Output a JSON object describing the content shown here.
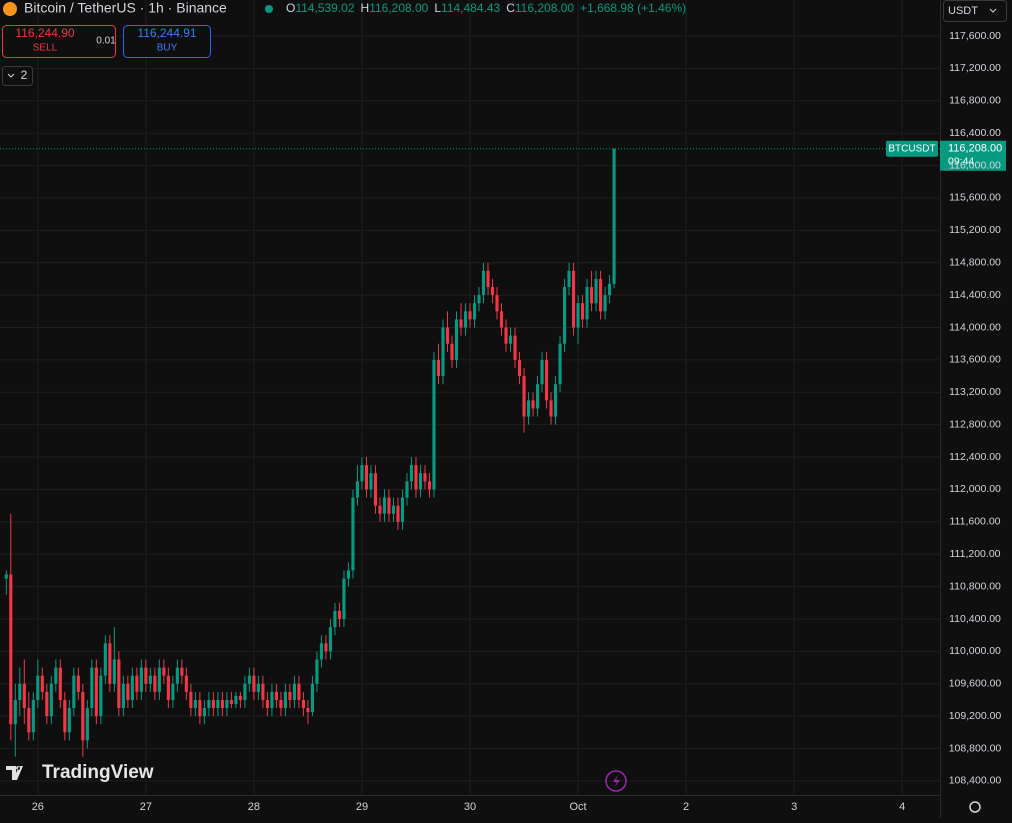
{
  "header": {
    "symbol": "Bitcoin / TetherUS · 1h · Binance",
    "ohlc": [
      {
        "key": "O",
        "value": "114,539.02"
      },
      {
        "key": "H",
        "value": "116,208.00"
      },
      {
        "key": "L",
        "value": "114,484.43"
      },
      {
        "key": "C",
        "value": "116,208.00"
      }
    ],
    "change": "+1,668.98 (+1.46%)"
  },
  "order_panel": {
    "sell_price": "116,244.90",
    "sell": "SELL",
    "spread": "0.01",
    "buy_price": "116,244.91",
    "buy": "BUY",
    "indicators": "2"
  },
  "currency": "USDT",
  "brand": "TradingView",
  "chart_data": {
    "type": "candlestick",
    "up_color": "#089981",
    "down_color": "#f23645",
    "grid": true,
    "ylim": [
      108226,
      118045
    ],
    "yticks": [
      {
        "value": 108400,
        "label": "108,400.00"
      },
      {
        "value": 108800,
        "label": "108,800.00"
      },
      {
        "value": 109200,
        "label": "109,200.00"
      },
      {
        "value": 109600,
        "label": "109,600.00"
      },
      {
        "value": 110000,
        "label": "110,000.00"
      },
      {
        "value": 110400,
        "label": "110,400.00"
      },
      {
        "value": 110800,
        "label": "110,800.00"
      },
      {
        "value": 111200,
        "label": "111,200.00"
      },
      {
        "value": 111600,
        "label": "111,600.00"
      },
      {
        "value": 112000,
        "label": "112,000.00"
      },
      {
        "value": 112400,
        "label": "112,400.00"
      },
      {
        "value": 112800,
        "label": "112,800.00"
      },
      {
        "value": 113200,
        "label": "113,200.00"
      },
      {
        "value": 113600,
        "label": "113,600.00"
      },
      {
        "value": 114000,
        "label": "114,000.00"
      },
      {
        "value": 114400,
        "label": "114,400.00"
      },
      {
        "value": 114800,
        "label": "114,800.00"
      },
      {
        "value": 115200,
        "label": "115,200.00"
      },
      {
        "value": 115600,
        "label": "115,600.00"
      },
      {
        "value": 116000,
        "label": "116,000.00"
      },
      {
        "value": 116400,
        "label": "116,400.00"
      },
      {
        "value": 116800,
        "label": "116,800.00"
      },
      {
        "value": 117200,
        "label": "117,200.00"
      },
      {
        "value": 117600,
        "label": "117,600.00"
      }
    ],
    "xlim": [
      -1.4,
      207.4
    ],
    "xticks": [
      {
        "value": 7,
        "label": "26"
      },
      {
        "value": 31,
        "label": "27"
      },
      {
        "value": 55,
        "label": "28"
      },
      {
        "value": 79,
        "label": "29"
      },
      {
        "value": 103,
        "label": "30"
      },
      {
        "value": 127,
        "label": "Oct"
      },
      {
        "value": 151,
        "label": "2"
      },
      {
        "value": 175,
        "label": "3"
      },
      {
        "value": 199,
        "label": "4"
      }
    ],
    "last_price": {
      "symbol": "BTCUSDT",
      "value": 116208,
      "label": "116,208.00",
      "countdown": "09:44"
    },
    "candles": [
      [
        110900,
        111000,
        110700,
        110950
      ],
      [
        110950,
        111700,
        108900,
        109100
      ],
      [
        109100,
        109600,
        108700,
        109400
      ],
      [
        109400,
        109800,
        109200,
        109600
      ],
      [
        109600,
        109900,
        109100,
        109300
      ],
      [
        109300,
        109500,
        108900,
        109000
      ],
      [
        109000,
        109500,
        108900,
        109400
      ],
      [
        109400,
        109900,
        109300,
        109700
      ],
      [
        109700,
        109800,
        109400,
        109500
      ],
      [
        109500,
        109600,
        109100,
        109200
      ],
      [
        109200,
        109700,
        109100,
        109600
      ],
      [
        109600,
        109900,
        109500,
        109800
      ],
      [
        109800,
        109900,
        109300,
        109400
      ],
      [
        109400,
        109500,
        108900,
        109000
      ],
      [
        109000,
        109400,
        108900,
        109300
      ],
      [
        109300,
        109800,
        109200,
        109700
      ],
      [
        109700,
        109800,
        109400,
        109500
      ],
      [
        109500,
        109600,
        108700,
        108900
      ],
      [
        108900,
        109400,
        108800,
        109300
      ],
      [
        109300,
        109900,
        109200,
        109800
      ],
      [
        109800,
        109900,
        109100,
        109200
      ],
      [
        109200,
        109800,
        109100,
        109700
      ],
      [
        109700,
        110200,
        109600,
        110100
      ],
      [
        110100,
        110200,
        109500,
        109600
      ],
      [
        109600,
        110300,
        109500,
        109900
      ],
      [
        109900,
        110000,
        109200,
        109300
      ],
      [
        109300,
        109700,
        109200,
        109600
      ],
      [
        109600,
        109700,
        109300,
        109400
      ],
      [
        109400,
        109800,
        109300,
        109700
      ],
      [
        109700,
        109800,
        109400,
        109500
      ],
      [
        109500,
        109900,
        109400,
        109800
      ],
      [
        109800,
        109900,
        109500,
        109600
      ],
      [
        109600,
        109800,
        109500,
        109700
      ],
      [
        109700,
        109800,
        109400,
        109500
      ],
      [
        109500,
        109900,
        109400,
        109800
      ],
      [
        109800,
        109900,
        109600,
        109700
      ],
      [
        109700,
        109800,
        109300,
        109400
      ],
      [
        109400,
        109700,
        109300,
        109600
      ],
      [
        109600,
        109900,
        109500,
        109800
      ],
      [
        109800,
        109900,
        109600,
        109700
      ],
      [
        109700,
        109800,
        109400,
        109500
      ],
      [
        109500,
        109600,
        109200,
        109300
      ],
      [
        109300,
        109500,
        109200,
        109400
      ],
      [
        109400,
        109500,
        109100,
        109200
      ],
      [
        109200,
        109400,
        109100,
        109300
      ],
      [
        109300,
        109500,
        109200,
        109400
      ],
      [
        109400,
        109500,
        109200,
        109300
      ],
      [
        109300,
        109500,
        109200,
        109400
      ],
      [
        109400,
        109500,
        109200,
        109300
      ],
      [
        109300,
        109500,
        109200,
        109400
      ],
      [
        109400,
        109500,
        109300,
        109350
      ],
      [
        109350,
        109500,
        109300,
        109450
      ],
      [
        109450,
        109500,
        109300,
        109400
      ],
      [
        109400,
        109700,
        109300,
        109600
      ],
      [
        109600,
        109800,
        109500,
        109700
      ],
      [
        109700,
        109800,
        109400,
        109500
      ],
      [
        109500,
        109700,
        109400,
        109600
      ],
      [
        109600,
        109700,
        109300,
        109400
      ],
      [
        109400,
        109500,
        109200,
        109300
      ],
      [
        109300,
        109600,
        109200,
        109500
      ],
      [
        109500,
        109600,
        109300,
        109400
      ],
      [
        109400,
        109500,
        109200,
        109300
      ],
      [
        109300,
        109600,
        109200,
        109500
      ],
      [
        109500,
        109600,
        109300,
        109400
      ],
      [
        109400,
        109700,
        109300,
        109600
      ],
      [
        109600,
        109700,
        109300,
        109400
      ],
      [
        109400,
        109500,
        109200,
        109300
      ],
      [
        109300,
        109400,
        109100,
        109250
      ],
      [
        109250,
        109700,
        109200,
        109600
      ],
      [
        109600,
        110000,
        109500,
        109900
      ],
      [
        109900,
        110200,
        109800,
        110100
      ],
      [
        110100,
        110200,
        109900,
        110000
      ],
      [
        110000,
        110400,
        109900,
        110300
      ],
      [
        110300,
        110600,
        110200,
        110500
      ],
      [
        110500,
        110600,
        110300,
        110400
      ],
      [
        110400,
        111000,
        110300,
        110900
      ],
      [
        110900,
        111100,
        110800,
        111000
      ],
      [
        111000,
        112000,
        110900,
        111900
      ],
      [
        111900,
        112300,
        111800,
        112100
      ],
      [
        112100,
        112400,
        112000,
        112300
      ],
      [
        112300,
        112400,
        111900,
        112000
      ],
      [
        112000,
        112300,
        111900,
        112200
      ],
      [
        112200,
        112300,
        111700,
        111800
      ],
      [
        111800,
        111900,
        111600,
        111700
      ],
      [
        111700,
        112000,
        111600,
        111900
      ],
      [
        111900,
        112000,
        111600,
        111700
      ],
      [
        111700,
        111900,
        111600,
        111800
      ],
      [
        111800,
        111900,
        111500,
        111600
      ],
      [
        111600,
        112000,
        111500,
        111900
      ],
      [
        111900,
        112200,
        111800,
        112100
      ],
      [
        112100,
        112400,
        112000,
        112300
      ],
      [
        112300,
        112400,
        111900,
        112000
      ],
      [
        112000,
        112300,
        111900,
        112200
      ],
      [
        112200,
        112300,
        112000,
        112100
      ],
      [
        112100,
        112200,
        111900,
        112000
      ],
      [
        112000,
        113700,
        111900,
        113600
      ],
      [
        113600,
        113800,
        113300,
        113400
      ],
      [
        113400,
        114100,
        113300,
        114000
      ],
      [
        114000,
        114200,
        113700,
        113800
      ],
      [
        113800,
        113900,
        113500,
        113600
      ],
      [
        113600,
        114200,
        113500,
        114100
      ],
      [
        114100,
        114300,
        113900,
        114000
      ],
      [
        114000,
        114300,
        113900,
        114200
      ],
      [
        114200,
        114300,
        114000,
        114100
      ],
      [
        114100,
        114400,
        114000,
        114300
      ],
      [
        114300,
        114500,
        114200,
        114400
      ],
      [
        114400,
        114800,
        114300,
        114700
      ],
      [
        114700,
        114800,
        114400,
        114500
      ],
      [
        114500,
        114600,
        114300,
        114400
      ],
      [
        114400,
        114500,
        114100,
        114200
      ],
      [
        114200,
        114300,
        113900,
        114000
      ],
      [
        114000,
        114100,
        113700,
        113800
      ],
      [
        113800,
        114000,
        113700,
        113900
      ],
      [
        113900,
        114000,
        113500,
        113600
      ],
      [
        113600,
        113700,
        113300,
        113400
      ],
      [
        113400,
        113500,
        112700,
        112900
      ],
      [
        112900,
        113200,
        112800,
        113100
      ],
      [
        113100,
        113200,
        112900,
        113000
      ],
      [
        113000,
        113400,
        112900,
        113300
      ],
      [
        113300,
        113700,
        113200,
        113600
      ],
      [
        113600,
        113700,
        113000,
        113100
      ],
      [
        113100,
        113200,
        112800,
        112900
      ],
      [
        112900,
        113400,
        112800,
        113300
      ],
      [
        113300,
        113900,
        113200,
        113800
      ],
      [
        113800,
        114600,
        113700,
        114500
      ],
      [
        114500,
        114800,
        114400,
        114700
      ],
      [
        114700,
        114800,
        113900,
        114000
      ],
      [
        114000,
        114400,
        113800,
        114300
      ],
      [
        114300,
        114400,
        114000,
        114100
      ],
      [
        114100,
        114600,
        114000,
        114500
      ],
      [
        114500,
        114700,
        114200,
        114300
      ],
      [
        114300,
        114700,
        114200,
        114600
      ],
      [
        114600,
        114700,
        114100,
        114200
      ],
      [
        114200,
        114500,
        114100,
        114400
      ],
      [
        114400,
        114650,
        114300,
        114539.02
      ],
      [
        114539.02,
        116208,
        114484.43,
        116208
      ]
    ]
  }
}
